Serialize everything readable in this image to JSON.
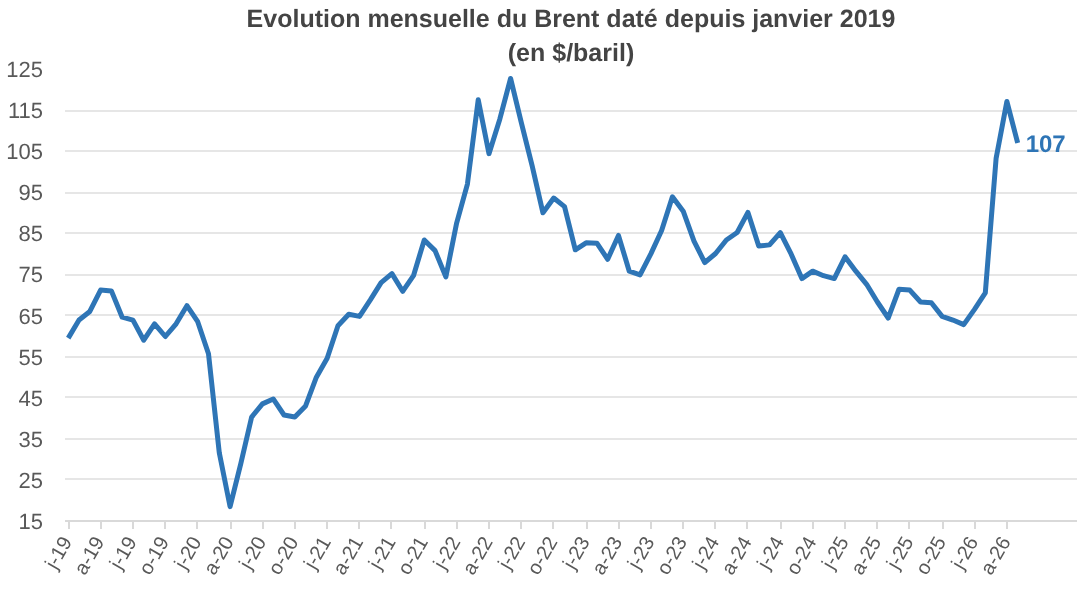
{
  "chart_data": {
    "type": "line",
    "title": "Evolution mensuelle du Brent daté depuis janvier 2019",
    "subtitle": "(en $/baril)",
    "categories": [
      "j-19",
      null,
      null,
      "a-19",
      null,
      null,
      "j-19",
      null,
      null,
      "o-19",
      null,
      null,
      "j-20",
      null,
      null,
      "a-20",
      null,
      null,
      "j-20",
      null,
      null,
      "o-20",
      null,
      null,
      "j-21",
      null,
      null,
      "a-21",
      null,
      null,
      "j-21",
      null,
      null,
      "o-21",
      null,
      null,
      "j-22",
      null,
      null,
      "a-22",
      null,
      null,
      "j-22",
      null,
      null,
      "o-22",
      null,
      null,
      "j-23",
      null,
      null,
      "a-23",
      null,
      null,
      "j-23",
      null,
      null,
      "o-23",
      null,
      null,
      "j-24",
      null,
      null,
      "a-24",
      null,
      null,
      "j-24",
      null,
      null,
      "o-24",
      null,
      null,
      "j-25",
      null,
      null,
      "a-25",
      null,
      null,
      "j-25",
      null,
      null,
      "o-25",
      null,
      null,
      "j-26",
      null,
      null,
      "a-26",
      null
    ],
    "series": [
      {
        "color": "#2e75b6",
        "values": [
          59.5,
          63.9,
          66,
          71.2,
          71,
          64.6,
          63.9,
          59,
          63,
          59.9,
          63,
          67.4,
          63.5,
          55.7,
          31.6,
          18.5,
          29,
          40.3,
          43.5,
          44.7,
          40.8,
          40.3,
          43,
          50,
          54.6,
          62.5,
          65.3,
          64.8,
          68.8,
          73,
          75.2,
          70.9,
          74.7,
          83.4,
          80.8,
          74.4,
          87.5,
          97,
          117.5,
          104.4,
          112.8,
          122.7,
          111.9,
          101.4,
          90,
          93.6,
          91.5,
          81,
          82.7,
          82.6,
          78.7,
          84.5,
          75.8,
          74.9,
          80,
          85.7,
          93.9,
          90.4,
          83.1,
          77.9,
          80.1,
          83.4,
          85.2,
          90.1,
          81.9,
          82.2,
          85.2,
          80,
          74,
          75.8,
          74.7,
          74,
          79.3,
          75.8,
          72.6,
          68.3,
          64.4,
          71.4,
          71.2,
          68.3,
          68.1,
          64.8,
          63.9,
          62.8,
          66.5,
          70.5,
          103.2,
          117.1,
          107
        ],
        "value_labels": [
          null,
          null,
          null,
          null,
          null,
          null,
          null,
          null,
          null,
          null,
          null,
          null,
          null,
          null,
          null,
          null,
          null,
          null,
          null,
          null,
          null,
          null,
          null,
          null,
          null,
          null,
          null,
          null,
          null,
          null,
          null,
          null,
          null,
          null,
          null,
          null,
          null,
          null,
          null,
          null,
          null,
          null,
          null,
          null,
          null,
          null,
          null,
          null,
          null,
          null,
          null,
          null,
          null,
          null,
          null,
          null,
          null,
          null,
          null,
          null,
          null,
          null,
          null,
          null,
          null,
          null,
          null,
          null,
          null,
          null,
          null,
          null,
          null,
          null,
          null,
          null,
          null,
          null,
          null,
          null,
          null,
          null,
          null,
          null,
          null,
          null,
          null,
          null,
          "107"
        ]
      }
    ],
    "ylim": [
      15,
      125
    ],
    "yticks": [
      15,
      25,
      35,
      45,
      55,
      65,
      75,
      85,
      95,
      105,
      115,
      125
    ],
    "grid": "y",
    "marker": "none",
    "line_style": "solid"
  }
}
